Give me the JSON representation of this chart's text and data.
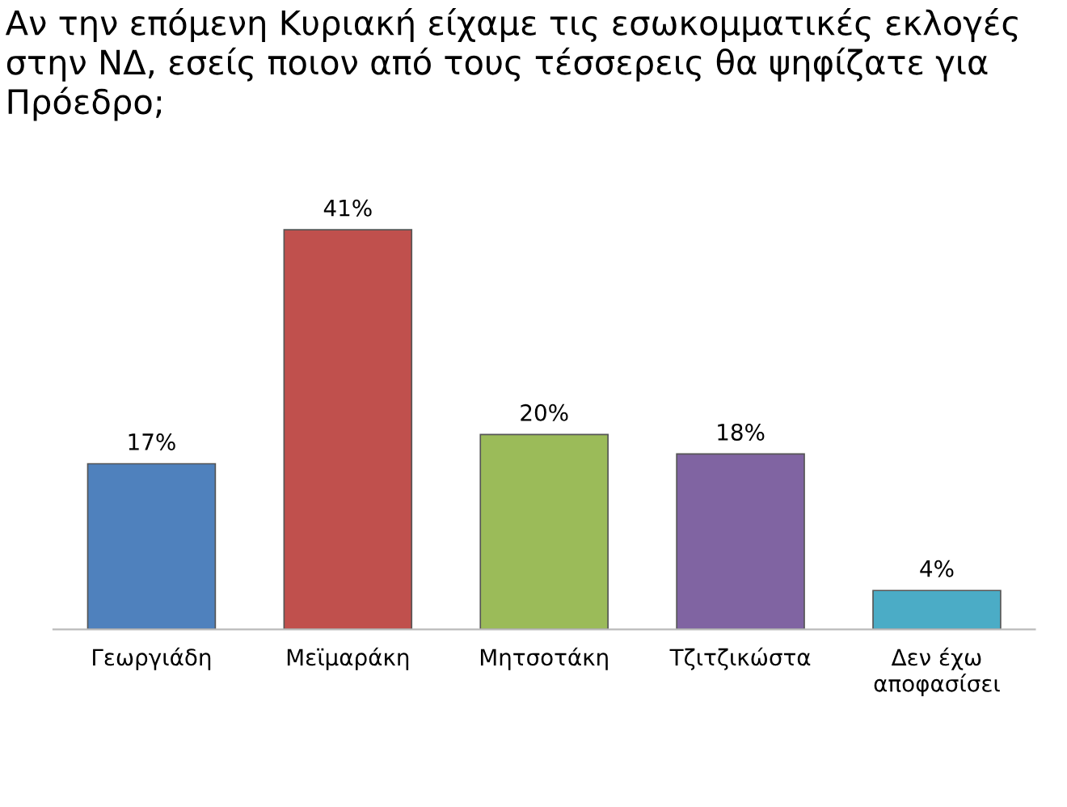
{
  "chart_data": {
    "type": "bar",
    "title": "Αν την επόμενη Κυριακή είχαμε τις εσωκομματικές εκλογές στην ΝΔ, εσείς ποιον από τους τέσσερεις θα ψηφίζατε για Πρόεδρο;",
    "categories": [
      "Γεωργιάδη",
      "Μεϊμαράκη",
      "Μητσοτάκη",
      "Τζιτζικώστα",
      "Δεν έχω\nαποφασίσει"
    ],
    "values": [
      17,
      41,
      20,
      18,
      4
    ],
    "colors": [
      "#4f81bd",
      "#c0504d",
      "#9bbb59",
      "#8064a2",
      "#4bacc6"
    ],
    "value_labels": [
      "17%",
      "41%",
      "20%",
      "18%",
      "4%"
    ],
    "tick_labels": "x",
    "grid": false,
    "legend": false
  }
}
